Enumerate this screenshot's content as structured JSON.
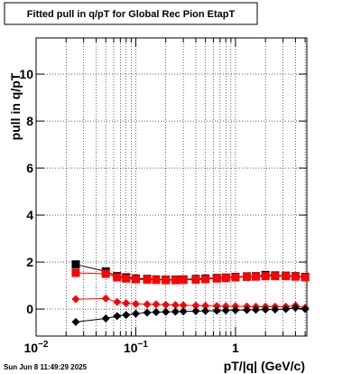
{
  "chart_data": {
    "type": "scatter",
    "title": "Fitted pull in q/pT for Global Rec Pion EtapT",
    "x_label": "pT/|q| (GeV/c)",
    "y_label": "pull in q/pT",
    "timestamp": "Sun Jun  8 11:49:29 2025",
    "x_log": true,
    "grid": true,
    "xlim": [
      0.01,
      5.2
    ],
    "ylim": [
      -1.15,
      11.54
    ],
    "xticks": [
      {
        "value": 0.01,
        "label": "10",
        "exponent": "−2"
      },
      {
        "value": 0.1,
        "label": "10",
        "exponent": "−1"
      },
      {
        "value": 1,
        "label": "1"
      }
    ],
    "xminorticks": [
      0.02,
      0.03,
      0.04,
      0.05,
      0.06,
      0.07,
      0.08,
      0.09,
      0.2,
      0.3,
      0.4,
      0.5,
      0.6,
      0.7,
      0.8,
      0.9,
      2,
      3,
      4,
      5
    ],
    "yticks": [
      0,
      2,
      4,
      6,
      8,
      10
    ],
    "x": [
      0.025,
      0.05,
      0.065,
      0.08,
      0.1,
      0.13,
      0.16,
      0.2,
      0.25,
      0.3,
      0.4,
      0.5,
      0.65,
      0.8,
      1.0,
      1.3,
      1.6,
      2.0,
      2.5,
      3.2,
      4.0,
      5.0
    ],
    "series": [
      {
        "color": "#000000",
        "marker": "square",
        "values": [
          1.9,
          1.6,
          1.4,
          1.35,
          1.3,
          1.28,
          1.26,
          1.25,
          1.25,
          1.26,
          1.28,
          1.3,
          1.32,
          1.34,
          1.37,
          1.39,
          1.4,
          1.45,
          1.43,
          1.42,
          1.4,
          1.37
        ]
      },
      {
        "color": "#ff0000",
        "marker": "square",
        "values": [
          1.54,
          1.5,
          1.35,
          1.3,
          1.27,
          1.25,
          1.24,
          1.23,
          1.23,
          1.24,
          1.25,
          1.27,
          1.3,
          1.32,
          1.35,
          1.37,
          1.38,
          1.4,
          1.4,
          1.4,
          1.38,
          1.35
        ]
      },
      {
        "color": "#ff0000",
        "marker": "diamond",
        "values": [
          0.42,
          0.45,
          0.3,
          0.25,
          0.22,
          0.2,
          0.2,
          0.18,
          0.17,
          0.16,
          0.15,
          0.14,
          0.13,
          0.12,
          0.12,
          0.11,
          0.1,
          0.1,
          0.1,
          0.1,
          0.15,
          0.05
        ]
      },
      {
        "color": "#000000",
        "marker": "diamond",
        "values": [
          -0.55,
          -0.4,
          -0.3,
          -0.25,
          -0.2,
          -0.15,
          -0.13,
          -0.12,
          -0.11,
          -0.1,
          -0.09,
          -0.08,
          -0.07,
          -0.06,
          -0.05,
          -0.04,
          -0.03,
          -0.02,
          -0.02,
          0.0,
          0.05,
          0.0
        ]
      }
    ]
  }
}
